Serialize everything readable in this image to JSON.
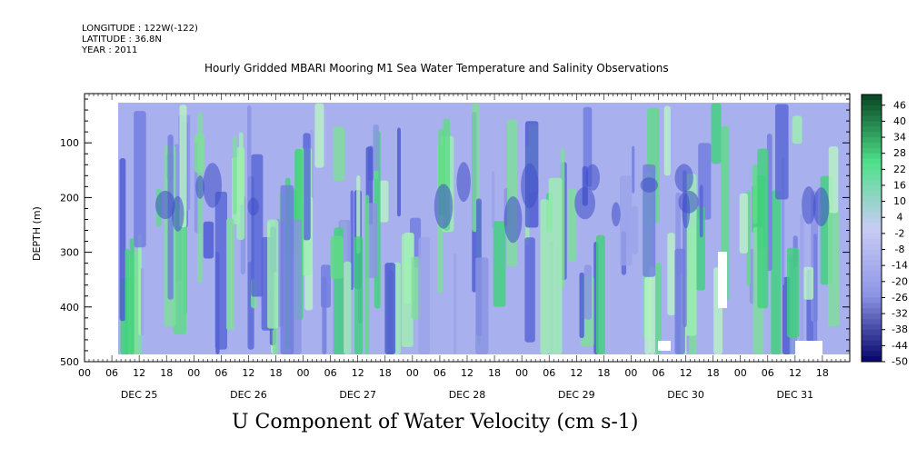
{
  "header": {
    "longitude": "LONGITUDE : 122W(-122)",
    "latitude": "LATITUDE : 36.8N",
    "year": "YEAR : 2011"
  },
  "chart_data": {
    "type": "heatmap",
    "title": "Hourly Gridded MBARI Mooring M1 Sea Water Temperature and Salinity Observations",
    "xlabel": "U Component of Water Velocity (cm s-1)",
    "ylabel": "DEPTH (m)",
    "y_ticks": [
      100,
      200,
      300,
      400,
      500
    ],
    "y_range": [
      500,
      10
    ],
    "x_hour_ticks": [
      "00",
      "06",
      "12",
      "18",
      "00",
      "06",
      "12",
      "18",
      "00",
      "06",
      "12",
      "18",
      "00",
      "06",
      "12",
      "18",
      "00",
      "06",
      "12",
      "18",
      "00",
      "06",
      "12",
      "18",
      "00",
      "06",
      "12",
      "18"
    ],
    "x_day_labels": [
      "DEC 25",
      "DEC 26",
      "DEC 27",
      "DEC 28",
      "DEC 29",
      "DEC 30",
      "DEC 31"
    ],
    "colorbar_levels": [
      "46",
      "40",
      "34",
      "28",
      "22",
      "16",
      "10",
      "4",
      "-2",
      "-8",
      "-14",
      "-20",
      "-26",
      "-32",
      "-38",
      "-44",
      "-50"
    ],
    "colorbar_range": [
      -50,
      50
    ],
    "colorbar_colors": {
      "low": "#0a0a6e",
      "mid_low": "#8f97e6",
      "zero": "#c8ccf5",
      "mid_high": "#4fe08a",
      "high": "#0a4a26"
    },
    "missing_data_color": "#ffffff"
  }
}
